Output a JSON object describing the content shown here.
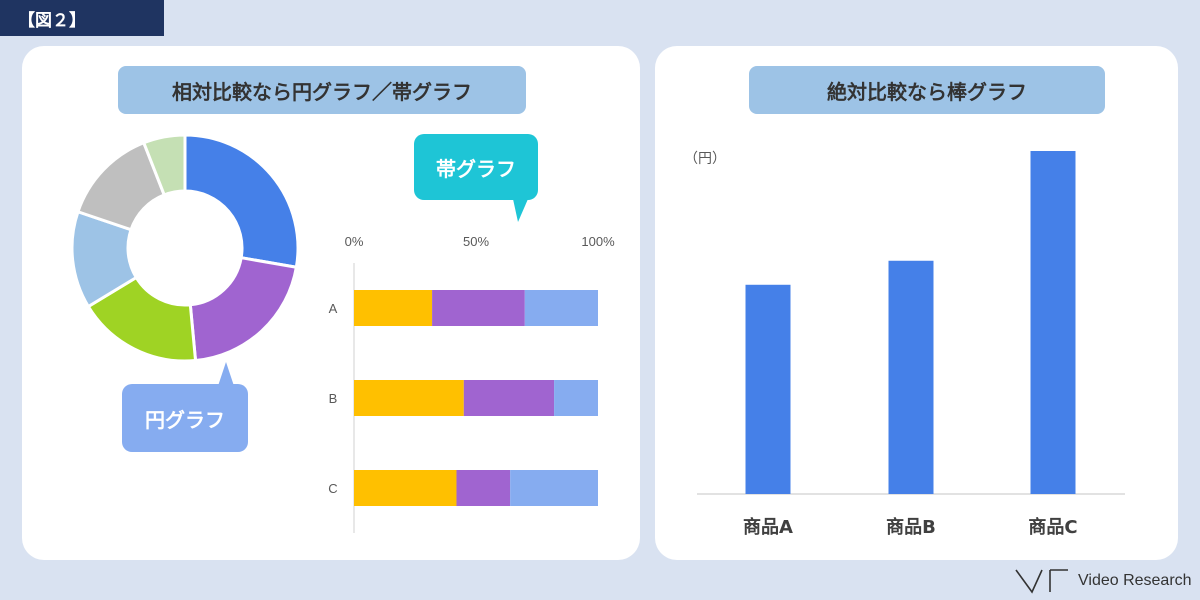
{
  "figure_tag": "【図２】",
  "left_panel": {
    "title": "相対比較なら円グラフ／帯グラフ",
    "band_bubble_label": "帯グラフ",
    "pie_bubble_label": "円グラフ"
  },
  "right_panel": {
    "title": "絶対比較なら棒グラフ"
  },
  "brand": {
    "logo_text": "Video Research"
  },
  "chart_data": [
    {
      "type": "pie",
      "donut": true,
      "values": [
        28,
        21,
        18,
        14,
        14,
        6
      ],
      "colors": [
        "#4580e8",
        "#a064d0",
        "#9fd324",
        "#9dc3e6",
        "#bfbfbf",
        "#c5e0b4"
      ]
    },
    {
      "type": "bar",
      "orientation": "horizontal",
      "stacked": "percent",
      "categories": [
        "A",
        "B",
        "C"
      ],
      "xticks": [
        "0%",
        "50%",
        "100%"
      ],
      "xlim": [
        0,
        100
      ],
      "series": [
        {
          "values": [
            32,
            45,
            42
          ],
          "color": "#ffc000"
        },
        {
          "values": [
            38,
            37,
            22
          ],
          "color": "#a064d0"
        },
        {
          "values": [
            30,
            18,
            36
          ],
          "color": "#86acf0"
        }
      ]
    },
    {
      "type": "bar",
      "categories": [
        "商品A",
        "商品B",
        "商品C"
      ],
      "values": [
        61,
        68,
        100
      ],
      "ylabel": "（円）",
      "ylim": [
        0,
        100
      ],
      "color": "#4580e8"
    }
  ]
}
